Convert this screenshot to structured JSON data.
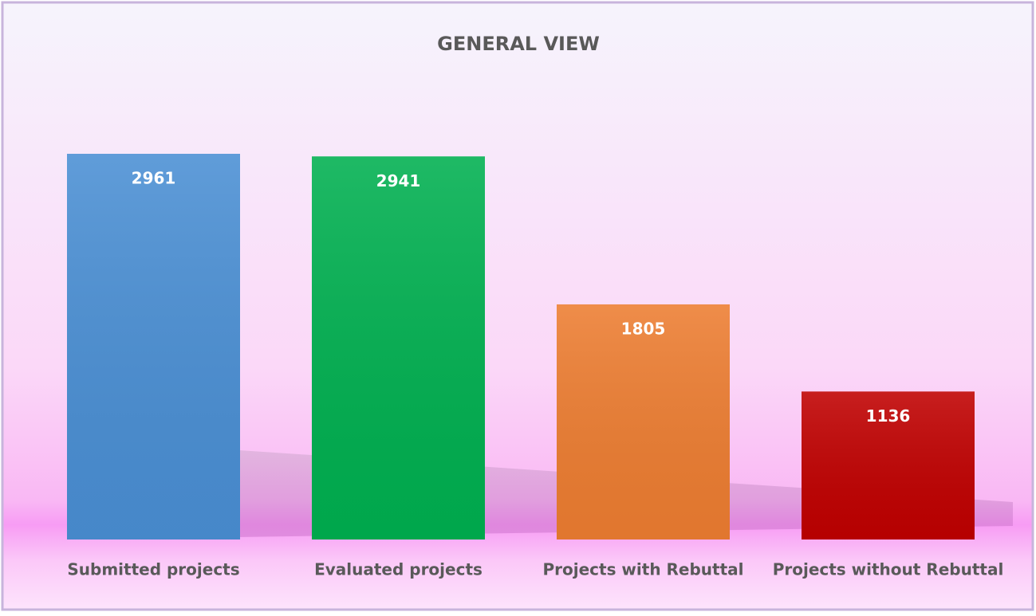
{
  "chart_data": {
    "type": "bar",
    "title": "GENERAL VIEW",
    "categories": [
      "Submitted projects",
      "Evaluated projects",
      "Projects with Rebuttal",
      "Projects without Rebuttal"
    ],
    "values": [
      2961,
      2941,
      1805,
      1136
    ],
    "colors": [
      "#4a8fd4",
      "#00b050",
      "#ed7d31",
      "#c00000"
    ]
  }
}
